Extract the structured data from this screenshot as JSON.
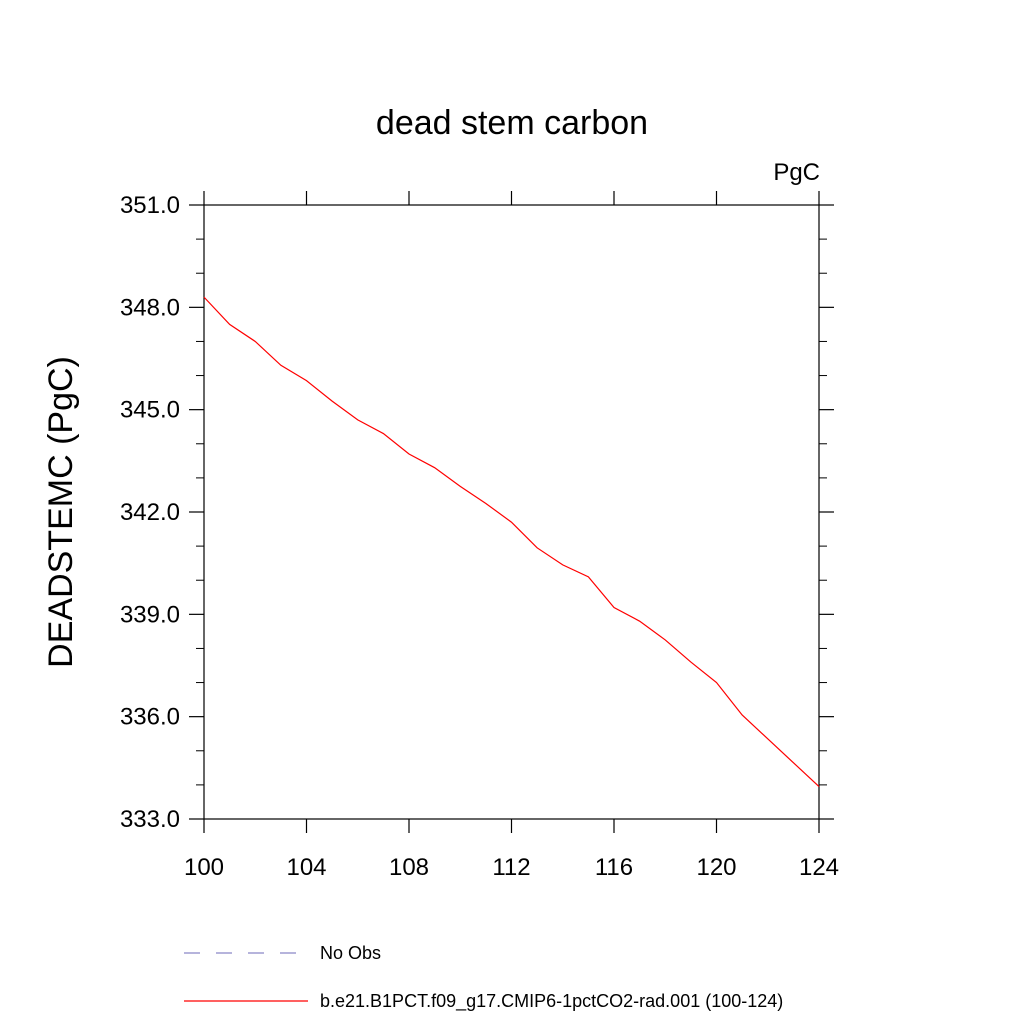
{
  "chart_data": {
    "type": "line",
    "title": "dead stem carbon",
    "units_label": "PgC",
    "ylabel": "DEADSTEMC  (PgC)",
    "xlabel": "",
    "xlim": [
      100,
      124
    ],
    "ylim": [
      333.0,
      351.0
    ],
    "x_ticks": [
      "100",
      "104",
      "108",
      "112",
      "116",
      "120",
      "124"
    ],
    "y_ticks": [
      "333.0",
      "336.0",
      "339.0",
      "342.0",
      "345.0",
      "348.0",
      "351.0"
    ],
    "x_tick_values": [
      100,
      104,
      108,
      112,
      116,
      120,
      124
    ],
    "y_tick_values": [
      333,
      336,
      339,
      342,
      345,
      348,
      351
    ],
    "grid": false,
    "legend_position": "bottom",
    "series": [
      {
        "name": "b.e21.B1PCT.f09_g17.CMIP6-1pctCO2-rad.001 (100-124)",
        "color": "#ff0000",
        "style": "solid",
        "x": [
          100,
          101,
          102,
          103,
          104,
          105,
          106,
          107,
          108,
          109,
          110,
          111,
          112,
          113,
          114,
          115,
          116,
          117,
          118,
          119,
          120,
          121,
          122,
          123,
          124
        ],
        "y": [
          348.3,
          347.5,
          347.0,
          346.3,
          345.85,
          345.25,
          344.7,
          344.3,
          343.7,
          343.3,
          342.75,
          342.25,
          341.7,
          340.95,
          340.45,
          340.1,
          339.2,
          338.8,
          338.25,
          337.6,
          337.0,
          336.05,
          335.35,
          334.65,
          333.95
        ]
      }
    ],
    "legend": [
      {
        "label": "No Obs",
        "color": "#8a86c8",
        "style": "dashed"
      },
      {
        "label": "b.e21.B1PCT.f09_g17.CMIP6-1pctCO2-rad.001 (100-124)",
        "color": "#ff0000",
        "style": "solid"
      }
    ]
  }
}
